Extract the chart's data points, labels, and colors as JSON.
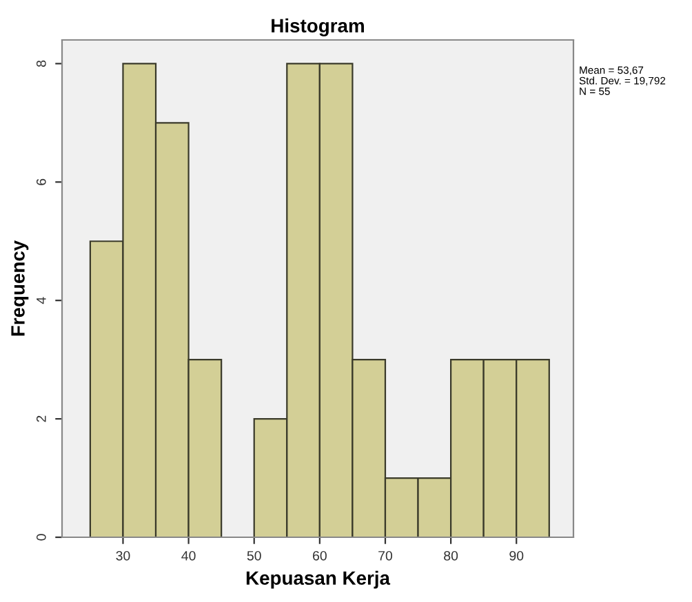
{
  "chart_data": {
    "type": "histogram",
    "title": "Histogram",
    "xlabel": "Kepuasan Kerja",
    "ylabel": "Frequency",
    "bins": [
      25,
      30,
      35,
      40,
      45,
      50,
      55,
      60,
      65,
      70,
      75,
      80,
      85,
      90,
      95
    ],
    "values": [
      5,
      8,
      7,
      3,
      0,
      2,
      8,
      8,
      3,
      1,
      1,
      3,
      3,
      3
    ],
    "color": "#d3cf96",
    "xlim": [
      20.7,
      98.7
    ],
    "xticks": [
      30,
      40,
      50,
      60,
      70,
      80,
      90
    ],
    "ylim": [
      0,
      8.4
    ],
    "yticks": [
      0,
      2,
      4,
      6,
      8
    ],
    "grid": false,
    "legend": false,
    "annotations": [
      "Mean = 53,67",
      "Std. Dev. = 19,792",
      "N = 55"
    ]
  }
}
